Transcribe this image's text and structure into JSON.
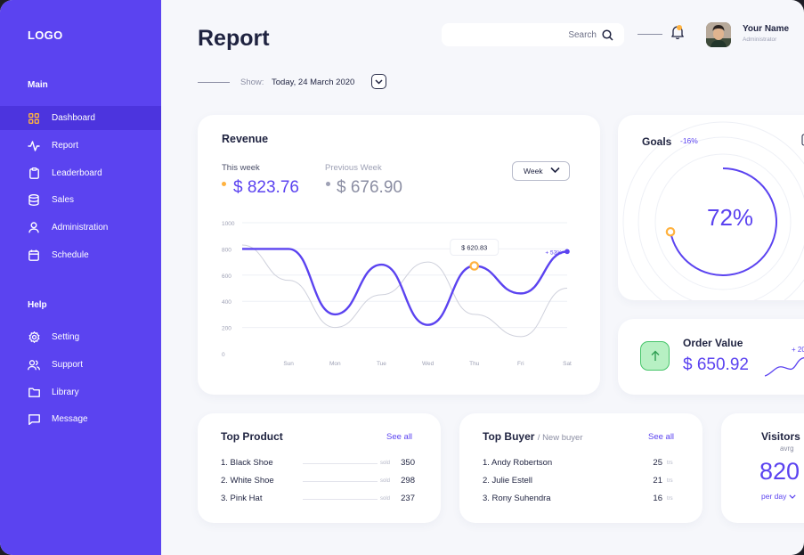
{
  "sidebar": {
    "logo": "LOGO",
    "main_label": "Main",
    "help_label": "Help",
    "main_items": [
      {
        "label": "Dashboard",
        "icon": "grid-icon"
      },
      {
        "label": "Report",
        "icon": "activity-icon"
      },
      {
        "label": "Leaderboard",
        "icon": "clipboard-icon"
      },
      {
        "label": "Sales",
        "icon": "database-icon"
      },
      {
        "label": "Administration",
        "icon": "user-icon"
      },
      {
        "label": "Schedule",
        "icon": "calendar-icon"
      }
    ],
    "help_items": [
      {
        "label": "Setting",
        "icon": "gear-icon"
      },
      {
        "label": "Support",
        "icon": "users-icon"
      },
      {
        "label": "Library",
        "icon": "folder-icon"
      },
      {
        "label": "Message",
        "icon": "message-icon"
      }
    ],
    "active_item": "Dashboard"
  },
  "header": {
    "title": "Report",
    "search_placeholder": "Search",
    "user_name": "Your Name",
    "user_role": "Administrator",
    "show_label": "Show:",
    "show_value": "Today, 24 March 2020"
  },
  "revenue": {
    "title": "Revenue",
    "this_week_label": "This week",
    "this_week_value": "$ 823.76",
    "prev_week_label": "Previous Week",
    "prev_week_value": "$ 676.90",
    "period": "Week",
    "tooltip": "$ 620.83",
    "end_delta": "+ 53%"
  },
  "chart_data": {
    "type": "line",
    "x": [
      "",
      "Sun",
      "Mon",
      "Tue",
      "Wed",
      "Thu",
      "Fri",
      "Sat"
    ],
    "y_ticks": [
      0,
      200,
      400,
      600,
      800,
      1000
    ],
    "ylim": [
      0,
      1000
    ],
    "series": [
      {
        "values": [
          800,
          800,
          300,
          680,
          220,
          670,
          460,
          780
        ],
        "color": "#5b43f0"
      },
      {
        "values": [
          830,
          560,
          200,
          450,
          700,
          300,
          130,
          500
        ],
        "color": "#cfd1dc"
      }
    ],
    "highlight_index": 5,
    "grid": true
  },
  "goals": {
    "title": "Goals",
    "delta": "-16%",
    "percent": "72%",
    "progress": 0.72
  },
  "order": {
    "title": "Order Value",
    "value": "$ 650.92",
    "delta": "+ 20"
  },
  "top_product": {
    "title": "Top Product",
    "see_all": "See all",
    "unit": "sold",
    "rows": [
      {
        "name": "1. Black Shoe",
        "value": "350"
      },
      {
        "name": "2. White Shoe",
        "value": "298"
      },
      {
        "name": "3. Pink Hat",
        "value": "237"
      }
    ]
  },
  "top_buyer": {
    "title": "Top Buyer",
    "subtitle": "/ New buyer",
    "see_all": "See all",
    "unit": "trs",
    "rows": [
      {
        "name": "1. Andy Robertson",
        "value": "25"
      },
      {
        "name": "2. Julie Estell",
        "value": "21"
      },
      {
        "name": "3. Rony Suhendra",
        "value": "16"
      }
    ]
  },
  "visitors": {
    "title": "Visitors",
    "subtitle": "avrg",
    "value": "820",
    "per": "per day"
  }
}
